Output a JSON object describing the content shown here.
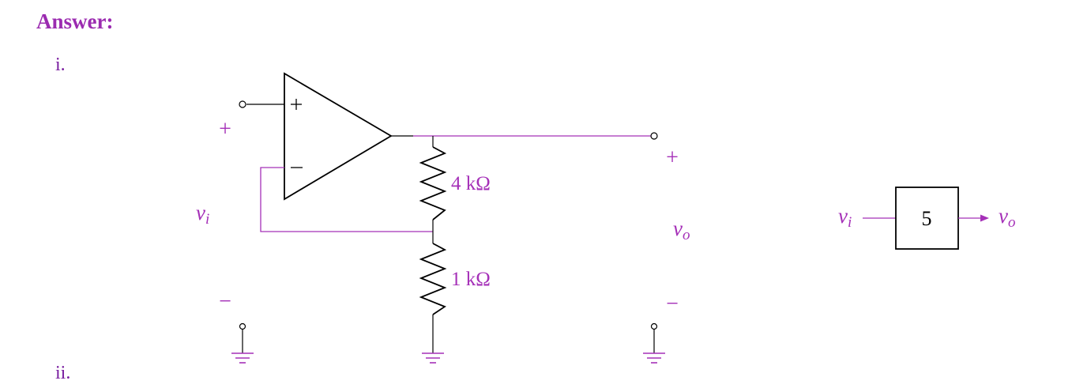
{
  "heading": "Answer:",
  "items": [
    {
      "label": "i."
    },
    {
      "label": "ii."
    }
  ],
  "circuit": {
    "opamp_plus": "+",
    "opamp_minus": "−",
    "input_plus": "+",
    "input_minus": "−",
    "input_var": "v",
    "input_sub": "i",
    "output_plus": "+",
    "output_minus": "−",
    "output_var": "v",
    "output_sub": "o",
    "r_top": "4 kΩ",
    "r_bottom": "1 kΩ"
  },
  "block_diagram": {
    "gain": "5",
    "input_var": "v",
    "input_sub": "i",
    "output_var": "v",
    "output_sub": "o"
  },
  "colors": {
    "accent": "#a530b8",
    "wire_dark": "#000000"
  }
}
